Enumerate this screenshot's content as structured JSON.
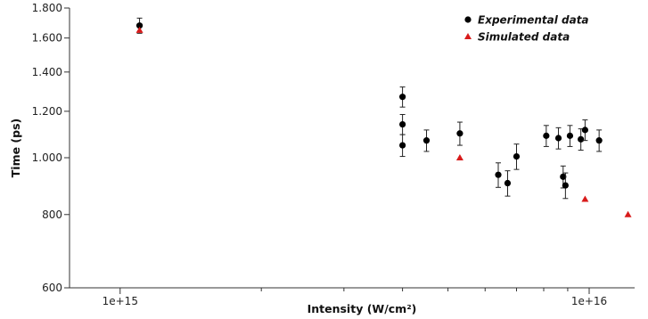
{
  "chart_data": {
    "type": "scatter",
    "xscale": "log",
    "yscale": "log",
    "xlim": [
      780000000000000.0,
      1.25e+16
    ],
    "ylim": [
      600,
      1800
    ],
    "xlabel": "Intensity (W/cm²)",
    "ylabel": "Time (ps)",
    "grid": false,
    "legend_position": "top-right",
    "x_ticks": [
      {
        "value": 1000000000000000.0,
        "label": "1e+15"
      },
      {
        "value": 1e+16,
        "label": "1e+16"
      }
    ],
    "x_minor_ticks": [
      2000000000000000.0,
      3000000000000000.0,
      4000000000000000.0,
      5000000000000000.0,
      6000000000000000.0,
      7000000000000000.0,
      8000000000000000.0,
      9000000000000000.0
    ],
    "y_ticks": [
      {
        "value": 600,
        "label": "600"
      },
      {
        "value": 800,
        "label": "800"
      },
      {
        "value": 1000,
        "label": "1.000"
      },
      {
        "value": 1200,
        "label": "1.200"
      },
      {
        "value": 1400,
        "label": "1.400"
      },
      {
        "value": 1600,
        "label": "1.600"
      },
      {
        "value": 1800,
        "label": "1.800"
      }
    ],
    "series": [
      {
        "name": "Experimental data",
        "marker": "circle",
        "color": "#000000",
        "points": [
          {
            "x": 1100000000000000.0,
            "y": 1680,
            "err": 50
          },
          {
            "x": 4000000000000000.0,
            "y": 1270,
            "err": 50
          },
          {
            "x": 4000000000000000.0,
            "y": 1140,
            "err": 45
          },
          {
            "x": 4000000000000000.0,
            "y": 1050,
            "err": 45
          },
          {
            "x": 4500000000000000.0,
            "y": 1070,
            "err": 45
          },
          {
            "x": 5300000000000000.0,
            "y": 1100,
            "err": 50
          },
          {
            "x": 6400000000000000.0,
            "y": 935,
            "err": 45
          },
          {
            "x": 6700000000000000.0,
            "y": 905,
            "err": 45
          },
          {
            "x": 7000000000000000.0,
            "y": 1005,
            "err": 50
          },
          {
            "x": 8100000000000000.0,
            "y": 1090,
            "err": 45
          },
          {
            "x": 8600000000000000.0,
            "y": 1080,
            "err": 45
          },
          {
            "x": 8800000000000000.0,
            "y": 928,
            "err": 40
          },
          {
            "x": 8900000000000000.0,
            "y": 897,
            "err": 45
          },
          {
            "x": 9100000000000000.0,
            "y": 1090,
            "err": 45
          },
          {
            "x": 9600000000000000.0,
            "y": 1075,
            "err": 45
          },
          {
            "x": 9800000000000000.0,
            "y": 1115,
            "err": 45
          },
          {
            "x": 1.05e+16,
            "y": 1070,
            "err": 45
          }
        ]
      },
      {
        "name": "Simulated data",
        "marker": "triangle",
        "color": "#d81b1b",
        "points": [
          {
            "x": 1100000000000000.0,
            "y": 1650
          },
          {
            "x": 5300000000000000.0,
            "y": 1000
          },
          {
            "x": 9800000000000000.0,
            "y": 850
          },
          {
            "x": 1.21e+16,
            "y": 800
          }
        ]
      }
    ]
  }
}
